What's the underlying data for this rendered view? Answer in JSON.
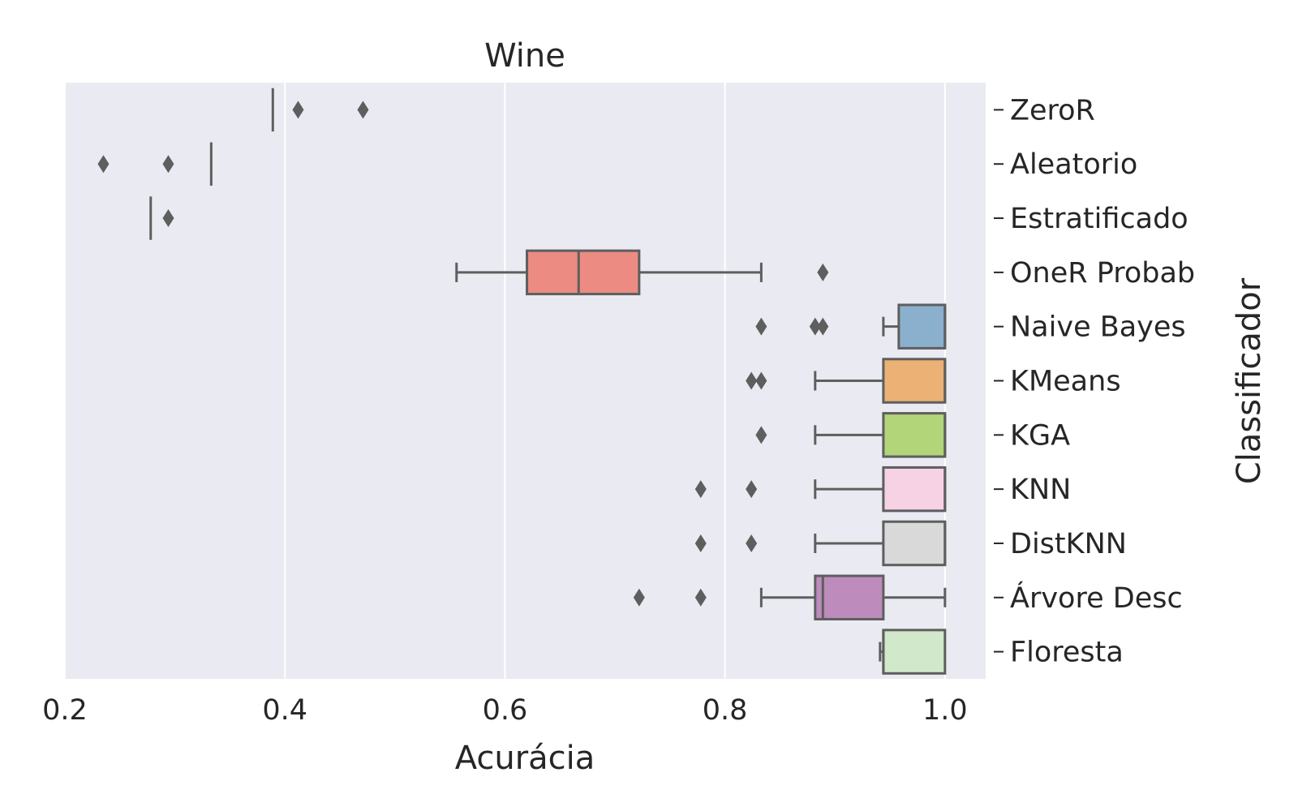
{
  "chart_data": {
    "type": "boxplot",
    "orientation": "horizontal",
    "title": "Wine",
    "xlabel": "Acurácia",
    "ylabel": "Classificador",
    "xlim": [
      0.2,
      1.037
    ],
    "xticks": [
      "0.2",
      "0.4",
      "0.6",
      "0.8",
      "1.0"
    ],
    "grid": true,
    "y_axis_position": "right",
    "categories": [
      {
        "name": "ZeroR",
        "color": "#ffffff",
        "min": 0.389,
        "q1": 0.389,
        "median": 0.389,
        "q3": 0.389,
        "max": 0.389,
        "outliers": [
          0.412,
          0.471
        ]
      },
      {
        "name": "Aleatorio",
        "color": "#ffffff",
        "min": 0.333,
        "q1": 0.333,
        "median": 0.333,
        "q3": 0.333,
        "max": 0.333,
        "outliers": [
          0.235,
          0.294
        ]
      },
      {
        "name": "Estratificado",
        "color": "#ffffff",
        "min": 0.278,
        "q1": 0.278,
        "median": 0.278,
        "q3": 0.278,
        "max": 0.278,
        "outliers": [
          0.294
        ]
      },
      {
        "name": "OneR Probab",
        "color": "#eb8b82",
        "min": 0.556,
        "q1": 0.62,
        "median": 0.667,
        "q3": 0.722,
        "max": 0.833,
        "outliers": [
          0.889
        ]
      },
      {
        "name": "Naive Bayes",
        "color": "#8ab0cd",
        "min": 0.944,
        "q1": 0.958,
        "median": 1.0,
        "q3": 1.0,
        "max": 1.0,
        "outliers": [
          0.833,
          0.882,
          0.889
        ]
      },
      {
        "name": "KMeans",
        "color": "#ecb174",
        "min": 0.882,
        "q1": 0.944,
        "median": 1.0,
        "q3": 1.0,
        "max": 1.0,
        "outliers": [
          0.824,
          0.833
        ]
      },
      {
        "name": "KGA",
        "color": "#b1d578",
        "min": 0.882,
        "q1": 0.944,
        "median": 1.0,
        "q3": 1.0,
        "max": 1.0,
        "outliers": [
          0.833
        ]
      },
      {
        "name": "KNN",
        "color": "#f6d2e4",
        "min": 0.882,
        "q1": 0.944,
        "median": 1.0,
        "q3": 1.0,
        "max": 1.0,
        "outliers": [
          0.778,
          0.824
        ]
      },
      {
        "name": "DistKNN",
        "color": "#d9d9d9",
        "min": 0.882,
        "q1": 0.944,
        "median": 1.0,
        "q3": 1.0,
        "max": 1.0,
        "outliers": [
          0.778,
          0.824
        ]
      },
      {
        "name": "Árvore Desc",
        "color": "#bd8cbd",
        "min": 0.833,
        "q1": 0.882,
        "median": 0.889,
        "q3": 0.944,
        "max": 1.0,
        "outliers": [
          0.722,
          0.778
        ]
      },
      {
        "name": "Floresta",
        "color": "#d1e8ca",
        "min": 0.941,
        "q1": 0.944,
        "median": 0.944,
        "q3": 1.0,
        "max": 1.0,
        "outliers": []
      }
    ]
  }
}
